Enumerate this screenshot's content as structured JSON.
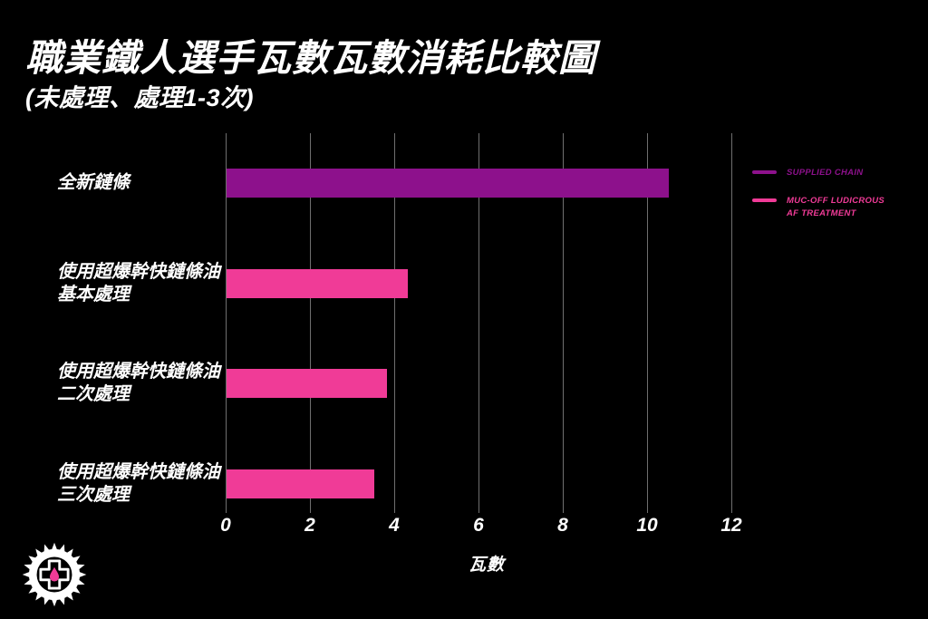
{
  "title": "職業鐵人選手瓦數瓦數消耗比較圖",
  "subtitle": "(未處理、處理1-3次)",
  "colors": {
    "background": "#000000",
    "purple": "#8D118C",
    "pink": "#F03B97",
    "grid": "#6F6F6F",
    "text": "#FFFFFF"
  },
  "legend": [
    {
      "label": "SUPPLIED CHAIN",
      "color": "#8D118C"
    },
    {
      "label": "MUC-OFF LUDICROUS AF TREATMENT",
      "color": "#F03B97"
    }
  ],
  "chart_data": {
    "type": "bar",
    "orientation": "horizontal",
    "title": "職業鐵人選手瓦數瓦數消耗比較圖",
    "subtitle": "(未處理、處理1-3次)",
    "categories": [
      "全新鏈條",
      "使用超爆幹快鏈條油\n基本處理",
      "使用超爆幹快鏈條油\n二次處理",
      "使用超爆幹快鏈條油\n三次處理"
    ],
    "values": [
      10.5,
      4.3,
      3.8,
      3.5
    ],
    "bar_colors": [
      "#8D118C",
      "#F03B97",
      "#F03B97",
      "#F03B97"
    ],
    "series": [
      {
        "name": "SUPPLIED CHAIN",
        "color": "#8D118C",
        "category_indexes": [
          0
        ]
      },
      {
        "name": "MUC-OFF LUDICROUS AF TREATMENT",
        "color": "#F03B97",
        "category_indexes": [
          1,
          2,
          3
        ]
      }
    ],
    "xlabel": "瓦數",
    "xticks": [
      0,
      2,
      4,
      6,
      8,
      10,
      12
    ],
    "xlim": [
      0,
      12
    ],
    "grid": "vertical-gridlines-only",
    "legend_position": "right"
  },
  "logo": {
    "name": "muc-off-gear-logo",
    "drop_color": "#F03B97"
  }
}
